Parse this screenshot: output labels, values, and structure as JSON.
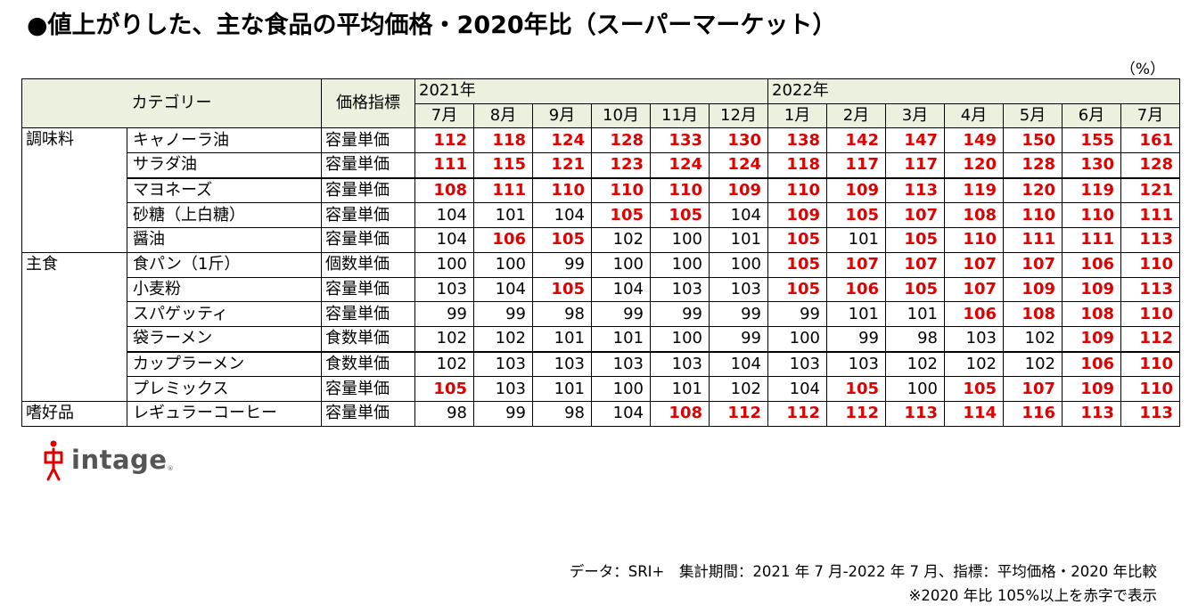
{
  "title": "●値上がりした、主な食品の平均価格・2020年比（スーパーマーケット）",
  "unit": "（%）",
  "table": {
    "header": {
      "category": "カテゴリー",
      "index": "価格指標",
      "year_2021": "2021年",
      "year_2022": "2022年",
      "months": [
        "7月",
        "8月",
        "9月",
        "10月",
        "11月",
        "12月",
        "1月",
        "2月",
        "3月",
        "4月",
        "5月",
        "6月",
        "7月"
      ]
    },
    "groups": [
      {
        "category": "調味料",
        "rows": [
          {
            "product": "キャノーラ油",
            "index": "容量単価",
            "values": [
              "112",
              "118",
              "124",
              "128",
              "133",
              "130",
              "138",
              "142",
              "147",
              "149",
              "150",
              "155",
              "161"
            ]
          },
          {
            "product": "サラダ油",
            "index": "容量単価",
            "values": [
              "111",
              "115",
              "121",
              "123",
              "124",
              "124",
              "118",
              "117",
              "117",
              "120",
              "128",
              "130",
              "128"
            ]
          },
          {
            "product": "マヨネーズ",
            "index": "容量単価",
            "values": [
              "108",
              "111",
              "110",
              "110",
              "110",
              "109",
              "110",
              "109",
              "113",
              "119",
              "120",
              "119",
              "121"
            ]
          },
          {
            "product": "砂糖（上白糖）",
            "index": "容量単価",
            "values": [
              "104",
              "101",
              "104",
              "105",
              "105",
              "104",
              "109",
              "105",
              "107",
              "108",
              "110",
              "110",
              "111"
            ]
          },
          {
            "product": "醤油",
            "index": "容量単価",
            "values": [
              "104",
              "106",
              "105",
              "102",
              "100",
              "101",
              "105",
              "101",
              "105",
              "110",
              "111",
              "111",
              "113"
            ]
          }
        ]
      },
      {
        "category": "主食",
        "rows": [
          {
            "product": "食パン（1斤）",
            "index": "個数単価",
            "values": [
              "100",
              "100",
              "99",
              "100",
              "100",
              "100",
              "105",
              "107",
              "107",
              "107",
              "107",
              "106",
              "110"
            ]
          },
          {
            "product": "小麦粉",
            "index": "容量単価",
            "values": [
              "103",
              "104",
              "105",
              "104",
              "103",
              "103",
              "105",
              "106",
              "105",
              "107",
              "109",
              "109",
              "113"
            ]
          },
          {
            "product": "スパゲッティ",
            "index": "容量単価",
            "values": [
              "99",
              "99",
              "98",
              "99",
              "99",
              "99",
              "99",
              "101",
              "101",
              "106",
              "108",
              "108",
              "110"
            ]
          },
          {
            "product": "袋ラーメン",
            "index": "食数単価",
            "values": [
              "102",
              "102",
              "101",
              "101",
              "100",
              "99",
              "100",
              "99",
              "98",
              "103",
              "102",
              "109",
              "112"
            ]
          },
          {
            "product": "カップラーメン",
            "index": "食数単価",
            "values": [
              "102",
              "103",
              "103",
              "103",
              "103",
              "104",
              "103",
              "103",
              "102",
              "102",
              "102",
              "106",
              "110"
            ]
          },
          {
            "product": "プレミックス",
            "index": "容量単価",
            "values": [
              "105",
              "103",
              "101",
              "100",
              "101",
              "102",
              "104",
              "105",
              "100",
              "105",
              "107",
              "109",
              "110"
            ]
          }
        ]
      },
      {
        "category": "嗜好品",
        "rows": [
          {
            "product": "レギュラーコーヒー",
            "index": "容量単価",
            "values": [
              "98",
              "99",
              "98",
              "104",
              "108",
              "112",
              "112",
              "112",
              "113",
              "114",
              "116",
              "113",
              "113"
            ]
          }
        ]
      }
    ]
  },
  "logo": {
    "text": "intage",
    "icon": "intage-logo-icon",
    "color": "#e00000"
  },
  "notes": {
    "line1": "データ：SRI+　集計期間：2021 年 7 月-2022 年 7 月、指標：平均価格・2020 年比較",
    "line2": "※2020 年比 105%以上を赤字で表示"
  },
  "colors": {
    "header_bg": "#ebf1de",
    "highlight": "#e00000"
  }
}
